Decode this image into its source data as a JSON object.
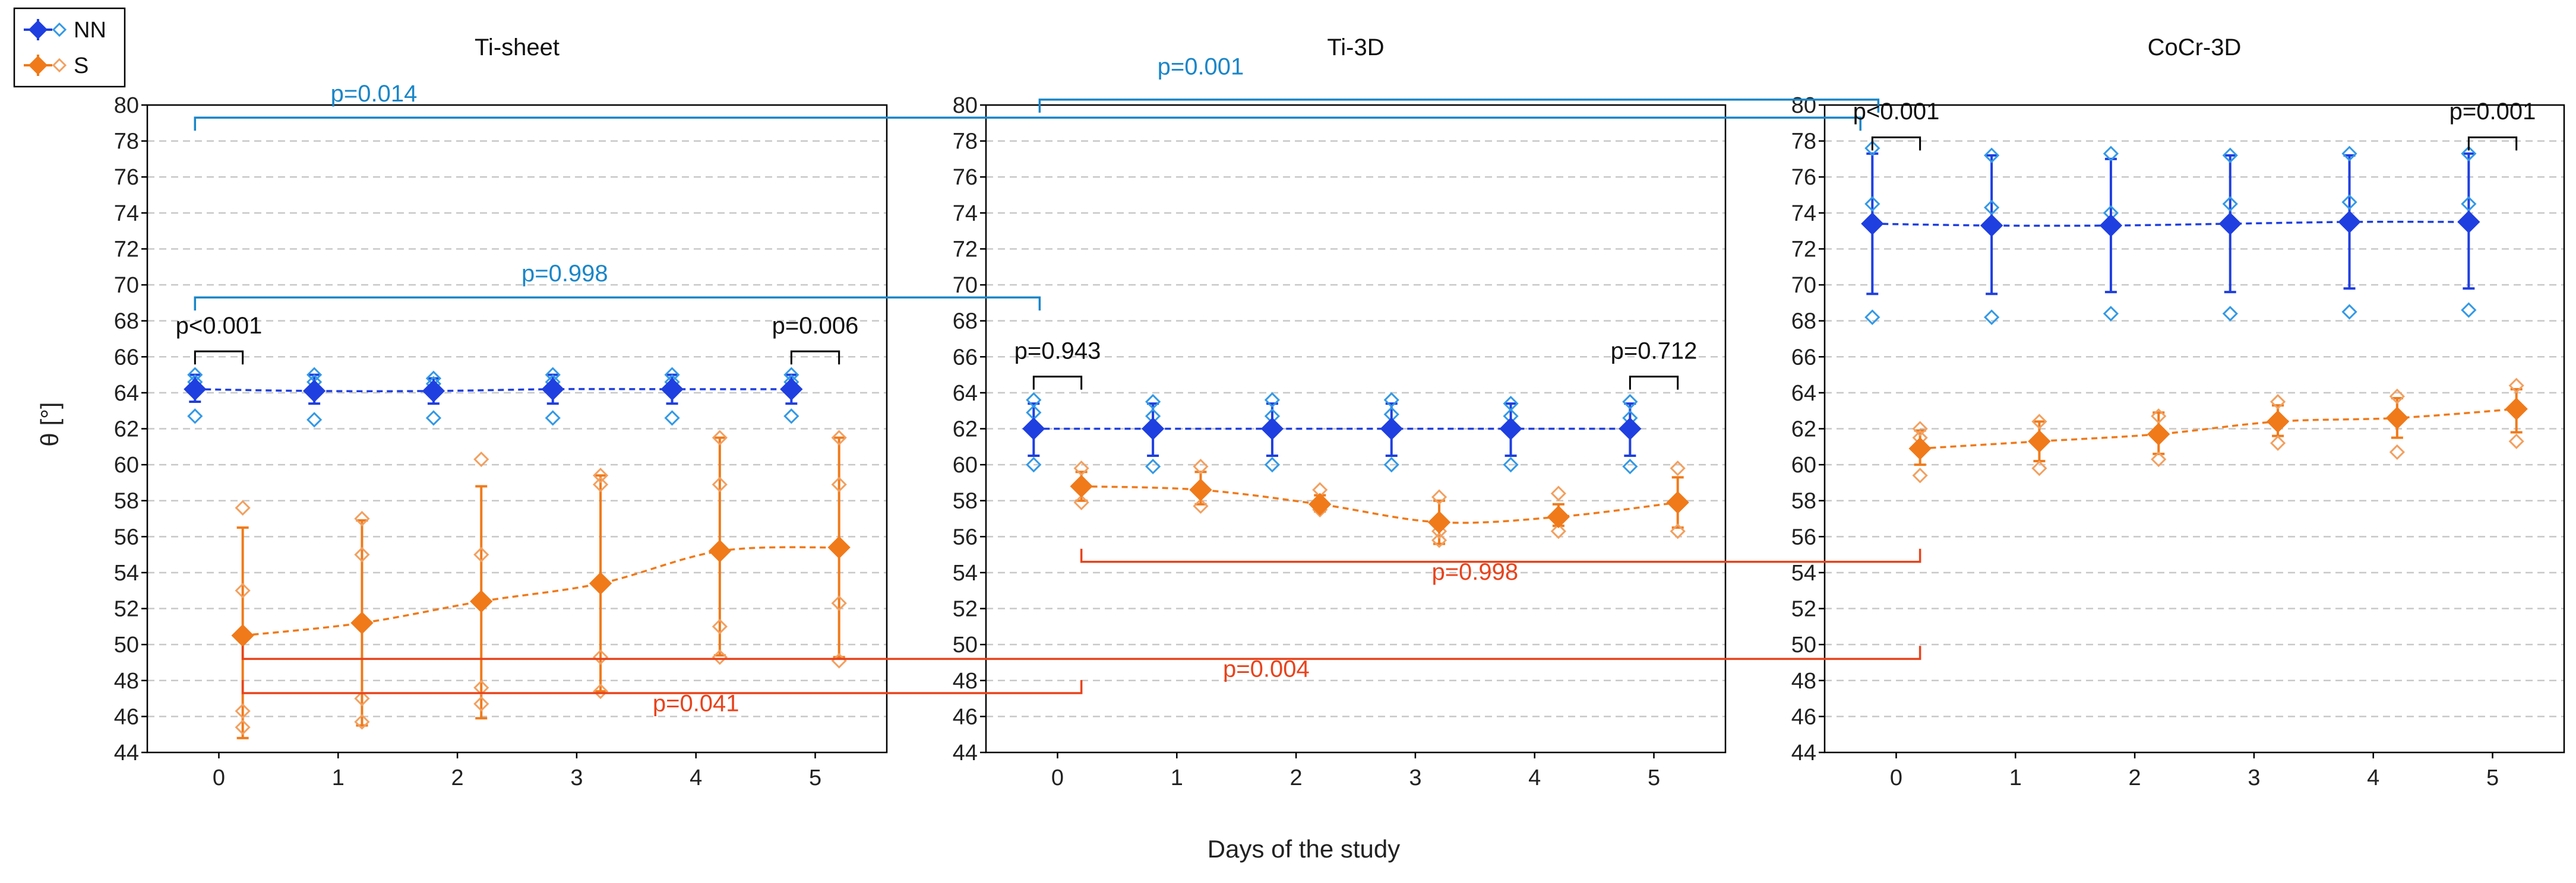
{
  "colors": {
    "nn": "#1f3fe0",
    "nn_light": "#3399e6",
    "s": "#f07a1a",
    "s_light": "#f2a060",
    "black": "#000000",
    "blue_bracket": "#1a86c8",
    "red_bracket": "#e8431c",
    "grid": "#c8c8c8"
  },
  "legend": [
    {
      "name": "NN",
      "color": "nn"
    },
    {
      "name": "S",
      "color": "s"
    }
  ],
  "xlabel": "Days of the study",
  "ylabel": "θ [°]",
  "chart_data": {
    "type": "line",
    "ylim": [
      44,
      80
    ],
    "yticks": [
      44,
      46,
      48,
      50,
      52,
      54,
      56,
      58,
      60,
      62,
      64,
      66,
      68,
      70,
      72,
      74,
      76,
      78,
      80
    ],
    "x": [
      0,
      1,
      2,
      3,
      4,
      5
    ],
    "grid": true,
    "legend_position": "top-left",
    "panels": [
      {
        "title": "Ti-sheet",
        "series": [
          {
            "name": "NN",
            "mean": [
              64.2,
              64.1,
              64.1,
              64.2,
              64.2,
              64.2
            ],
            "lower": [
              63.5,
              63.4,
              63.4,
              63.4,
              63.4,
              63.4
            ],
            "upper": [
              65.0,
              65.0,
              64.8,
              65.0,
              65.0,
              65.0
            ],
            "points": [
              [
                65.0,
                64.6,
                62.7
              ],
              [
                65.0,
                64.6,
                62.5
              ],
              [
                64.8,
                64.5,
                62.6
              ],
              [
                65.0,
                64.6,
                62.6
              ],
              [
                65.0,
                64.6,
                62.6
              ],
              [
                65.0,
                64.6,
                62.7
              ]
            ]
          },
          {
            "name": "S",
            "mean": [
              50.5,
              51.2,
              52.4,
              53.4,
              55.2,
              55.4
            ],
            "lower": [
              44.8,
              45.5,
              45.9,
              47.4,
              49.4,
              49.3
            ],
            "upper": [
              56.5,
              56.9,
              58.8,
              59.4,
              61.5,
              61.5
            ],
            "points": [
              [
                57.6,
                53.0,
                46.3,
                45.4
              ],
              [
                57.0,
                55.0,
                47.0,
                45.7
              ],
              [
                60.3,
                55.0,
                47.6,
                46.7
              ],
              [
                59.4,
                58.9,
                49.3,
                47.4
              ],
              [
                61.5,
                58.9,
                51.0,
                49.3
              ],
              [
                61.5,
                58.9,
                52.3,
                49.1
              ]
            ]
          }
        ]
      },
      {
        "title": "Ti-3D",
        "series": [
          {
            "name": "NN",
            "mean": [
              62.0,
              62.0,
              62.0,
              62.0,
              62.0,
              62.0
            ],
            "lower": [
              60.5,
              60.5,
              60.5,
              60.5,
              60.5,
              60.5
            ],
            "upper": [
              63.4,
              63.4,
              63.4,
              63.4,
              63.4,
              63.4
            ],
            "points": [
              [
                63.6,
                62.9,
                60.0
              ],
              [
                63.5,
                62.7,
                59.9
              ],
              [
                63.6,
                62.7,
                60.0
              ],
              [
                63.6,
                62.8,
                60.0
              ],
              [
                63.4,
                62.7,
                60.0
              ],
              [
                63.5,
                62.6,
                59.9
              ]
            ]
          },
          {
            "name": "S",
            "mean": [
              58.8,
              58.6,
              57.8,
              56.8,
              57.1,
              57.9
            ],
            "lower": [
              58.0,
              57.8,
              57.4,
              55.6,
              56.6,
              56.5
            ],
            "upper": [
              59.6,
              59.6,
              58.3,
              58.0,
              57.8,
              59.3
            ],
            "points": [
              [
                59.8,
                58.8,
                57.9
              ],
              [
                59.9,
                58.6,
                57.7
              ],
              [
                58.6,
                58.0,
                57.5
              ],
              [
                58.2,
                56.3,
                55.8
              ],
              [
                58.4,
                57.0,
                56.3
              ],
              [
                59.8,
                57.8,
                56.3
              ]
            ]
          }
        ]
      },
      {
        "title": "CoCr-3D",
        "series": [
          {
            "name": "NN",
            "mean": [
              73.4,
              73.3,
              73.3,
              73.4,
              73.5,
              73.5
            ],
            "lower": [
              69.5,
              69.5,
              69.6,
              69.6,
              69.8,
              69.8
            ],
            "upper": [
              77.3,
              77.2,
              77.0,
              77.2,
              77.2,
              77.3
            ],
            "points": [
              [
                77.6,
                74.5,
                73.3,
                68.2
              ],
              [
                77.2,
                74.3,
                73.2,
                68.2
              ],
              [
                77.3,
                74.0,
                73.2,
                68.4
              ],
              [
                77.2,
                74.5,
                73.5,
                68.4
              ],
              [
                77.3,
                74.6,
                73.5,
                68.5
              ],
              [
                77.3,
                74.5,
                73.5,
                68.6
              ]
            ]
          },
          {
            "name": "S",
            "mean": [
              60.9,
              61.3,
              61.7,
              62.4,
              62.6,
              63.1
            ],
            "lower": [
              60.0,
              60.2,
              60.6,
              61.6,
              61.5,
              61.8
            ],
            "upper": [
              61.9,
              62.4,
              62.9,
              63.3,
              63.7,
              64.2
            ],
            "points": [
              [
                62.0,
                61.5,
                59.4
              ],
              [
                62.4,
                61.3,
                59.8
              ],
              [
                62.7,
                61.8,
                60.3
              ],
              [
                63.5,
                62.4,
                61.2
              ],
              [
                63.8,
                62.5,
                60.7
              ],
              [
                64.4,
                63.0,
                61.3
              ]
            ]
          }
        ]
      }
    ],
    "annotations": [
      {
        "label": "p=0.014",
        "style": "blue",
        "y": 79.3,
        "text_y": 80.2,
        "from": {
          "panel": 0,
          "x": -0.2
        },
        "to": {
          "panel": 2,
          "x": -0.3
        },
        "text_at": {
          "panel": 0,
          "x": 1.3
        }
      },
      {
        "label": "p=0.001",
        "style": "blue",
        "y": 80.3,
        "text_y": 81.7,
        "from": {
          "panel": 1,
          "x": -0.15
        },
        "to": {
          "panel": 2,
          "x": -0.15
        },
        "text_at": {
          "panel": 1,
          "x": 1.2
        }
      },
      {
        "label": "p=0.998",
        "style": "blue",
        "y": 69.3,
        "text_y": 70.2,
        "from": {
          "panel": 0,
          "x": -0.2
        },
        "to": {
          "panel": 1,
          "x": -0.15
        },
        "text_at": {
          "panel": 0,
          "x": 2.9
        }
      },
      {
        "label": "p=0.998",
        "style": "red",
        "y": 54.6,
        "text_y": 53.6,
        "from": {
          "panel": 1,
          "x": 0.2
        },
        "to": {
          "panel": 2,
          "x": 0.2
        },
        "text_at": {
          "panel": 1,
          "x": 3.5
        },
        "dir": "up"
      },
      {
        "label": "p=0.004",
        "style": "red",
        "y": 49.2,
        "text_y": 48.2,
        "from": {
          "panel": 0,
          "x": 0.2
        },
        "to": {
          "panel": 2,
          "x": 0.2
        },
        "text_at": {
          "panel": 1,
          "x": 1.75
        },
        "dir": "up"
      },
      {
        "label": "p=0.041",
        "style": "red",
        "y": 47.3,
        "text_y": 46.3,
        "from": {
          "panel": 0,
          "x": 0.2
        },
        "to": {
          "panel": 1,
          "x": 0.2
        },
        "text_at": {
          "panel": 0,
          "x": 4.0
        },
        "dir": "up"
      }
    ],
    "local_annotations": [
      {
        "label": "p<0.001",
        "panel": 0,
        "x0": -0.2,
        "x1": 0.2,
        "y": 66.3,
        "text_y": 67.3
      },
      {
        "label": "p=0.006",
        "panel": 0,
        "x0": 4.8,
        "x1": 5.2,
        "y": 66.3,
        "text_y": 67.3
      },
      {
        "label": "p=0.943",
        "panel": 1,
        "x0": -0.2,
        "x1": 0.2,
        "y": 64.9,
        "text_y": 65.9
      },
      {
        "label": "p=0.712",
        "panel": 1,
        "x0": 4.8,
        "x1": 5.2,
        "y": 64.9,
        "text_y": 65.9
      },
      {
        "label": "p<0.001",
        "panel": 2,
        "x0": -0.2,
        "x1": 0.2,
        "y": 78.2,
        "text_y": 79.2
      },
      {
        "label": "p=0.001",
        "panel": 2,
        "x0": 4.8,
        "x1": 5.2,
        "y": 78.2,
        "text_y": 79.2
      }
    ]
  }
}
